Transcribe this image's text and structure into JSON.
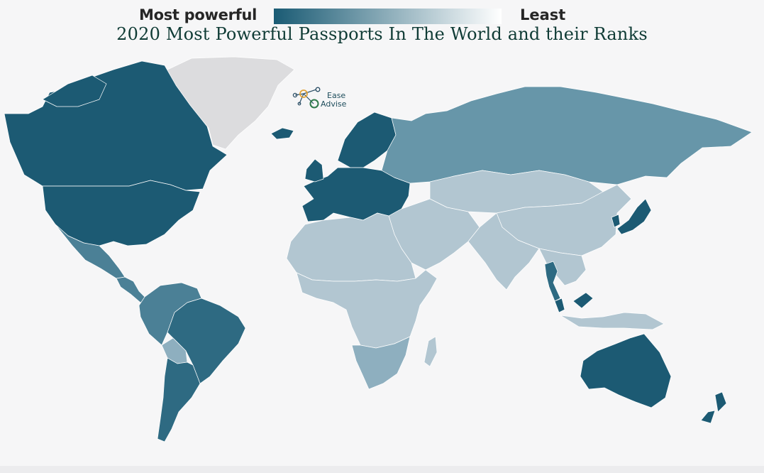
{
  "title": "2020 Most Powerful Passports In The World and their Ranks",
  "legend": {
    "left_label": "Most powerful",
    "right_label": "Least",
    "color_high": "#1a5b74",
    "color_low": "#ffffff"
  },
  "logo": {
    "line1": "Ease",
    "line2": "Advise",
    "icon": "molecule-network-icon"
  },
  "colors": {
    "background": "#f6f6f7",
    "no_data": "#dcdcde",
    "strongest": "#1c5a73",
    "strong": "#2e6a82",
    "upper_mid": "#4b8096",
    "mid": "#6796a9",
    "lower_mid": "#8eafbf",
    "weak": "#b2c6d1",
    "weakest": "#d3e0e6"
  },
  "regions": [
    {
      "name": "Greenland",
      "shade": "no_data"
    },
    {
      "name": "Canada",
      "shade": "strongest"
    },
    {
      "name": "United States",
      "shade": "strongest"
    },
    {
      "name": "Mexico",
      "shade": "upper_mid"
    },
    {
      "name": "Central America",
      "shade": "upper_mid"
    },
    {
      "name": "Brazil",
      "shade": "strong"
    },
    {
      "name": "Andean South America",
      "shade": "upper_mid"
    },
    {
      "name": "Bolivia",
      "shade": "lower_mid"
    },
    {
      "name": "Southern Cone",
      "shade": "strong"
    },
    {
      "name": "Western Europe",
      "shade": "strongest"
    },
    {
      "name": "Scandinavia",
      "shade": "strongest"
    },
    {
      "name": "Iceland",
      "shade": "strongest"
    },
    {
      "name": "Russia",
      "shade": "mid"
    },
    {
      "name": "Central Asia",
      "shade": "weak"
    },
    {
      "name": "Middle East",
      "shade": "weak"
    },
    {
      "name": "North Africa",
      "shade": "weak"
    },
    {
      "name": "Sub-Saharan Africa",
      "shade": "weak"
    },
    {
      "name": "Southern Africa",
      "shade": "lower_mid"
    },
    {
      "name": "Madagascar",
      "shade": "weak"
    },
    {
      "name": "South Asia",
      "shade": "weak"
    },
    {
      "name": "China",
      "shade": "weak"
    },
    {
      "name": "Southeast Asia",
      "shade": "weak"
    },
    {
      "name": "Malaysia",
      "shade": "strongest"
    },
    {
      "name": "Thailand",
      "shade": "strong"
    },
    {
      "name": "Japan",
      "shade": "strongest"
    },
    {
      "name": "South Korea",
      "shade": "strongest"
    },
    {
      "name": "Indonesia",
      "shade": "weak"
    },
    {
      "name": "Australia",
      "shade": "strongest"
    },
    {
      "name": "New Zealand",
      "shade": "strongest"
    }
  ]
}
